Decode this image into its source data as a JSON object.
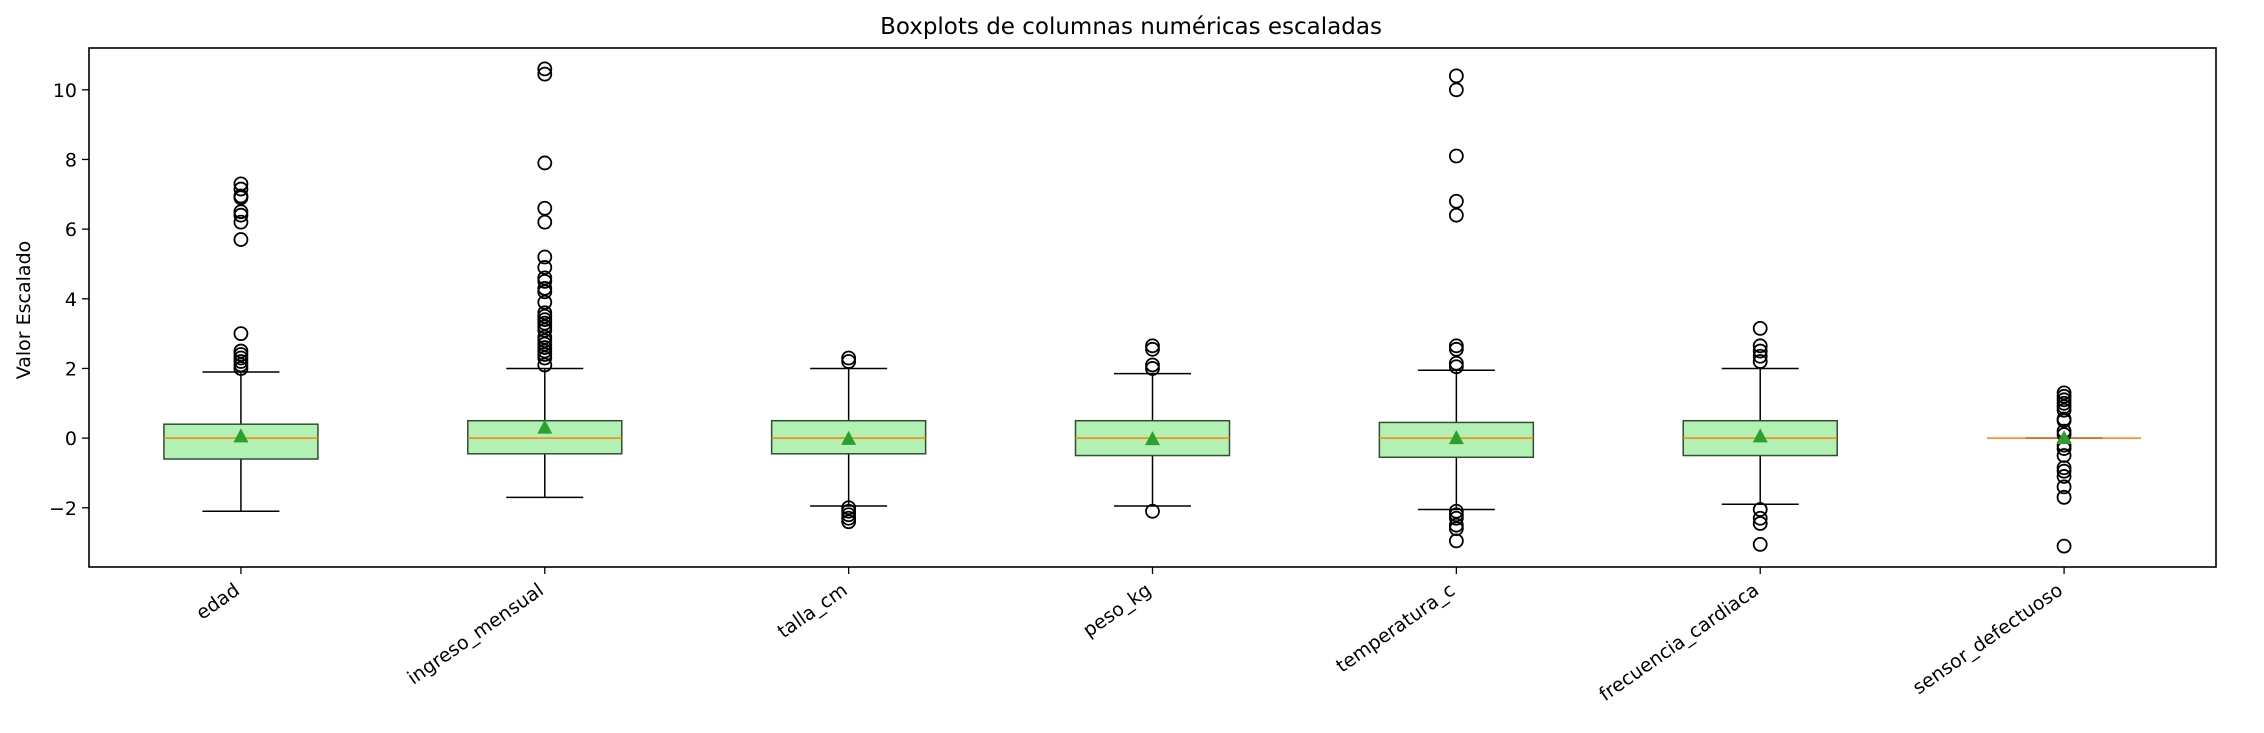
{
  "chart_data": {
    "type": "box",
    "title": "Boxplots de columnas numéricas escaladas",
    "xlabel": "",
    "ylabel": "Valor Escalado",
    "ylim": [
      -3.7,
      11.2
    ],
    "yticks": [
      -2,
      0,
      2,
      4,
      6,
      8,
      10
    ],
    "ytick_labels": [
      "−2",
      "0",
      "2",
      "4",
      "6",
      "8",
      "10"
    ],
    "grid": false,
    "colors": {
      "box_fill": "#b3f0b3",
      "box_edge": "#2f4f2f",
      "median": "#ff7f0e",
      "mean_marker": "#2ca02c",
      "whisker": "#000000",
      "flier": "#000000"
    },
    "categories": [
      "edad",
      "ingreso_mensual",
      "talla_cm",
      "peso_kg",
      "temperatura_c",
      "frecuencia_cardiaca",
      "sensor_defectuoso"
    ],
    "boxes": [
      {
        "name": "edad",
        "whislo": -2.1,
        "q1": -0.6,
        "med": 0.0,
        "q3": 0.4,
        "whishi": 1.9,
        "mean": 0.05,
        "fliers": [
          7.3,
          7.15,
          6.95,
          6.9,
          6.5,
          6.4,
          6.2,
          5.7,
          3.0,
          2.5,
          2.4,
          2.3,
          2.2,
          2.1,
          2.0
        ]
      },
      {
        "name": "ingreso_mensual",
        "whislo": -1.7,
        "q1": -0.45,
        "med": 0.0,
        "q3": 0.5,
        "whishi": 2.0,
        "mean": 0.3,
        "fliers": [
          10.6,
          10.45,
          7.9,
          6.6,
          6.2,
          5.2,
          4.9,
          4.6,
          4.5,
          4.3,
          4.2,
          3.9,
          3.6,
          3.5,
          3.4,
          3.3,
          3.2,
          3.1,
          2.9,
          2.8,
          2.7,
          2.6,
          2.5,
          2.4,
          2.3,
          2.1
        ]
      },
      {
        "name": "talla_cm",
        "whislo": -1.95,
        "q1": -0.45,
        "med": 0.0,
        "q3": 0.5,
        "whishi": 2.0,
        "mean": -0.02,
        "fliers": [
          2.3,
          2.2,
          -2.0,
          -2.1,
          -2.2,
          -2.3,
          -2.4
        ]
      },
      {
        "name": "peso_kg",
        "whislo": -1.95,
        "q1": -0.5,
        "med": 0.0,
        "q3": 0.5,
        "whishi": 1.85,
        "mean": -0.03,
        "fliers": [
          2.65,
          2.55,
          2.1,
          2.0,
          -2.1
        ]
      },
      {
        "name": "temperatura_c",
        "whislo": -2.05,
        "q1": -0.55,
        "med": 0.0,
        "q3": 0.45,
        "whishi": 1.95,
        "mean": 0.0,
        "fliers": [
          10.4,
          10.0,
          8.1,
          6.8,
          6.4,
          2.65,
          2.55,
          2.15,
          2.05,
          -2.1,
          -2.2,
          -2.3,
          -2.5,
          -2.6,
          -2.95
        ]
      },
      {
        "name": "frecuencia_cardiaca",
        "whislo": -1.9,
        "q1": -0.5,
        "med": 0.0,
        "q3": 0.5,
        "whishi": 2.0,
        "mean": 0.05,
        "fliers": [
          3.15,
          2.65,
          2.5,
          2.35,
          2.2,
          -2.05,
          -2.3,
          -2.45,
          -3.05
        ]
      },
      {
        "name": "sensor_defectuoso",
        "whislo": 0.0,
        "q1": 0.0,
        "med": 0.0,
        "q3": 0.0,
        "whishi": 0.0,
        "mean": 0.0,
        "fliers": [
          1.3,
          1.2,
          1.1,
          1.0,
          0.9,
          0.8,
          0.55,
          0.5,
          0.2,
          0.1,
          -0.2,
          -0.3,
          -0.5,
          -0.85,
          -0.95,
          -1.1,
          -1.4,
          -1.7,
          -3.1
        ]
      }
    ]
  }
}
